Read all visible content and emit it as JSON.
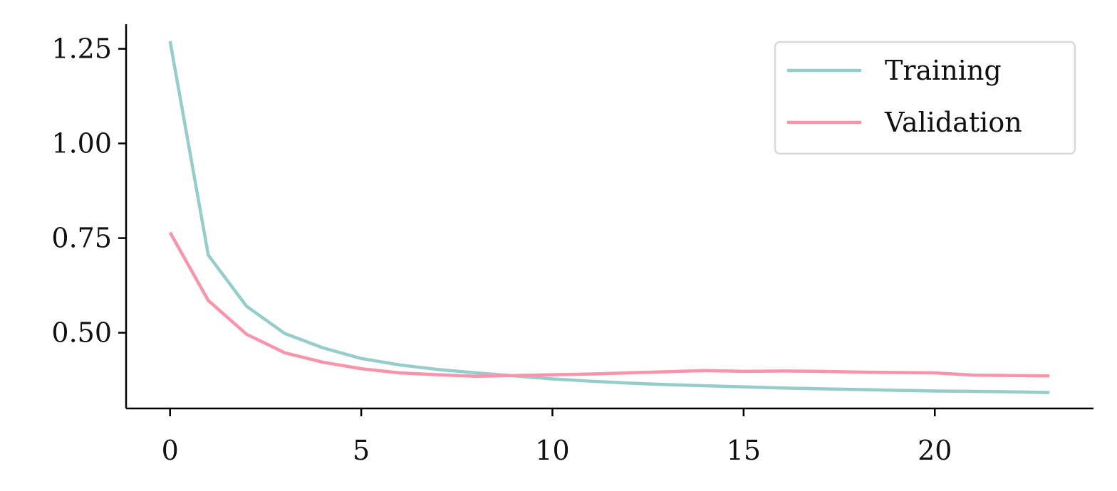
{
  "chart_data": {
    "type": "line",
    "title": "",
    "xlabel": "",
    "ylabel": "",
    "xlim": [
      -1.15,
      24.15
    ],
    "ylim": [
      0.3,
      1.315
    ],
    "xticks": [
      0,
      5,
      10,
      15,
      20
    ],
    "xtick_labels": [
      "0",
      "5",
      "10",
      "15",
      "20"
    ],
    "yticks": [
      0.5,
      0.75,
      1.0,
      1.25
    ],
    "ytick_labels": [
      "0.50",
      "0.75",
      "1.00",
      "1.25"
    ],
    "grid": false,
    "legend_position": "top-right",
    "x": [
      0,
      1,
      2,
      3,
      4,
      5,
      6,
      7,
      8,
      9,
      10,
      11,
      12,
      13,
      14,
      15,
      16,
      17,
      18,
      19,
      20,
      21,
      22,
      23
    ],
    "series": [
      {
        "name": "Training",
        "color": "#96cdcb",
        "values": [
          1.27,
          0.705,
          0.57,
          0.498,
          0.46,
          0.432,
          0.415,
          0.403,
          0.394,
          0.386,
          0.378,
          0.372,
          0.367,
          0.363,
          0.36,
          0.357,
          0.354,
          0.352,
          0.35,
          0.348,
          0.346,
          0.345,
          0.344,
          0.342
        ]
      },
      {
        "name": "Validation",
        "color": "#f994ab",
        "values": [
          0.765,
          0.585,
          0.496,
          0.447,
          0.422,
          0.405,
          0.394,
          0.389,
          0.385,
          0.387,
          0.389,
          0.391,
          0.394,
          0.397,
          0.4,
          0.398,
          0.399,
          0.398,
          0.396,
          0.395,
          0.394,
          0.388,
          0.387,
          0.386
        ]
      }
    ]
  }
}
